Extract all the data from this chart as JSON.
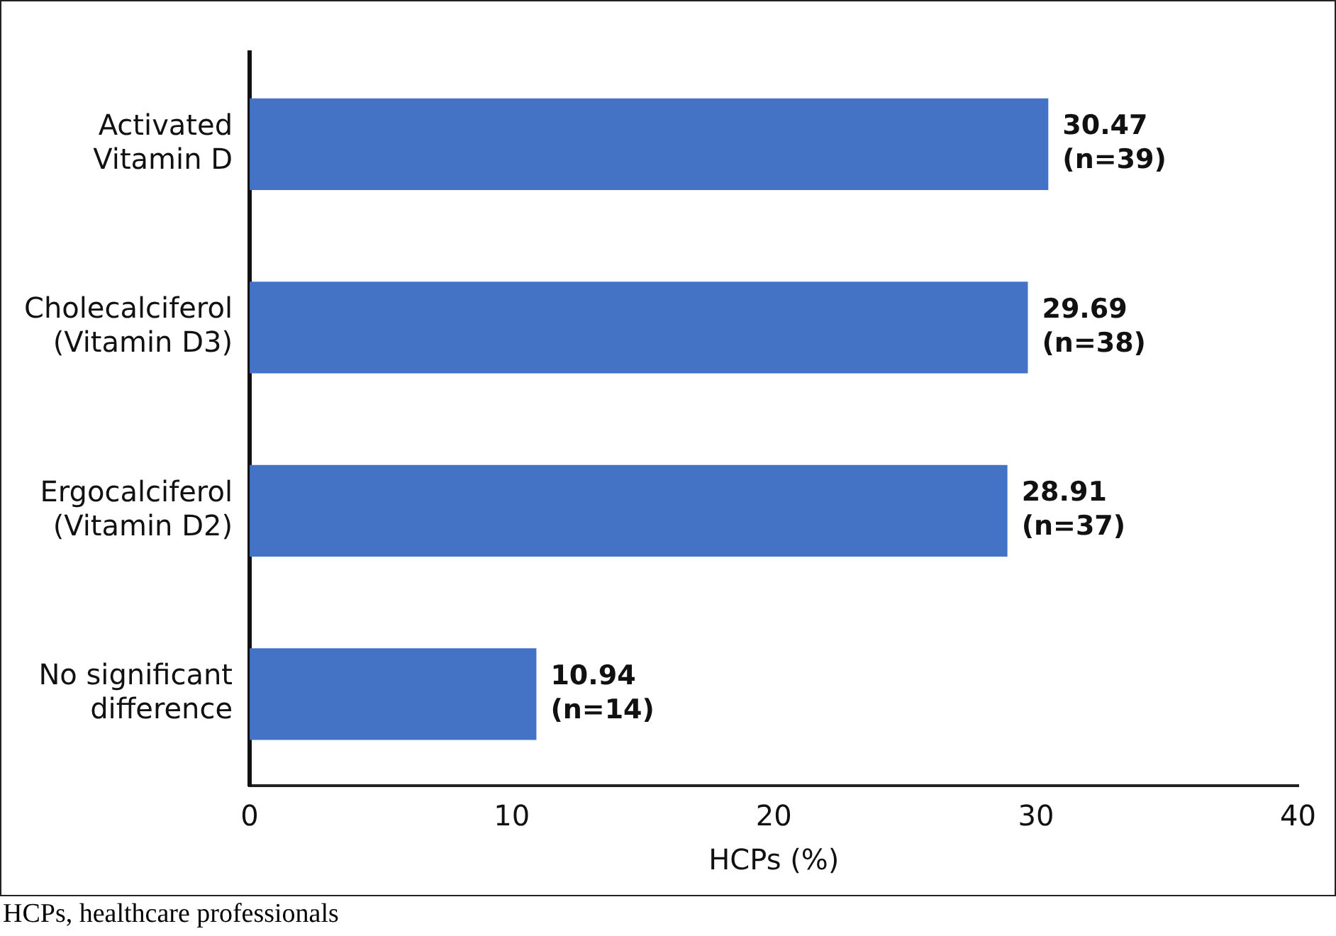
{
  "chart_data": {
    "type": "bar",
    "orientation": "horizontal",
    "xlabel": "HCPs (%)",
    "categories": [
      "Activated\nVitamin D",
      "Cholecalciferol\n(Vitamin D3)",
      "Ergocalciferol\n(Vitamin D2)",
      "No significant\ndifference"
    ],
    "values": [
      30.47,
      29.69,
      28.91,
      10.94
    ],
    "value_labels": [
      "30.47\n(n=39)",
      "29.69\n(n=38)",
      "28.91\n(n=37)",
      "10.94\n(n=14)"
    ],
    "color": "#4472c4",
    "xlim": [
      0,
      40
    ],
    "xticks": [
      0,
      10,
      20,
      30,
      40
    ],
    "grid": false,
    "legend": false,
    "annotations": [
      "HCPs, healthcare professionals"
    ]
  }
}
